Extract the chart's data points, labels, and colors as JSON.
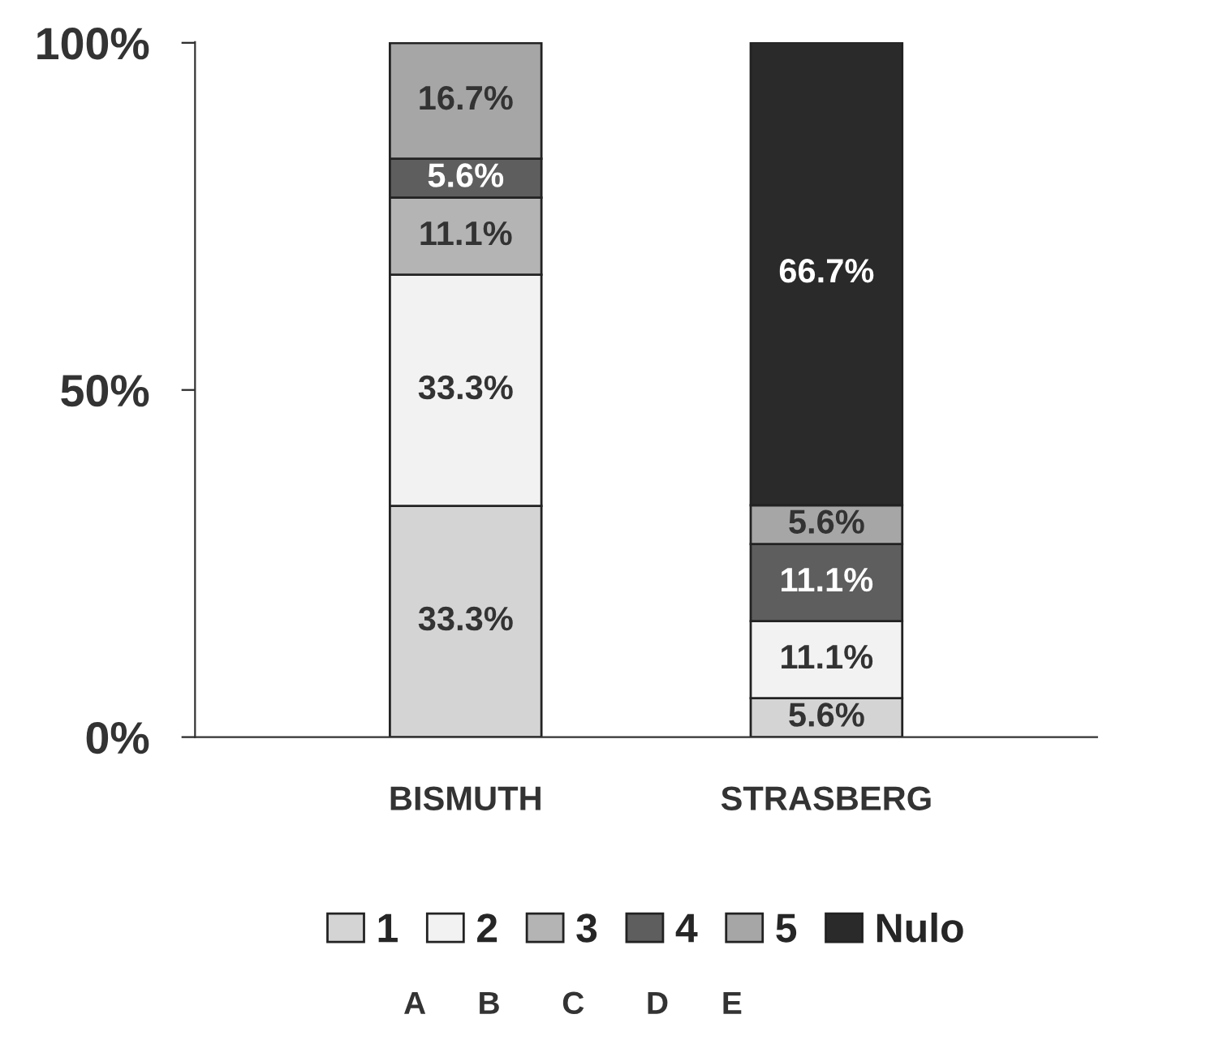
{
  "chart_data": {
    "type": "bar",
    "stacked": true,
    "categories": [
      "BISMUTH",
      "STRASBERG"
    ],
    "series": [
      {
        "name": "1",
        "color": "#d4d4d4",
        "values": [
          33.3,
          5.6
        ],
        "value_labels": [
          "33.3%",
          "5.6%"
        ]
      },
      {
        "name": "2",
        "color": "#f2f2f2",
        "values": [
          33.3,
          11.1
        ],
        "value_labels": [
          "33.3%",
          "11.1%"
        ]
      },
      {
        "name": "3",
        "color": "#b4b4b4",
        "values": [
          11.1,
          0
        ],
        "value_labels": [
          "11.1%",
          null
        ]
      },
      {
        "name": "4",
        "color": "#5e5e5e",
        "values": [
          5.6,
          11.1
        ],
        "value_labels": [
          "5.6%",
          "11.1%"
        ]
      },
      {
        "name": "5",
        "color": "#a6a6a6",
        "values": [
          16.7,
          5.6
        ],
        "value_labels": [
          "16.7%",
          "5.6%"
        ]
      },
      {
        "name": "Nulo",
        "color": "#2a2a2a",
        "values": [
          0,
          66.7
        ],
        "value_labels": [
          null,
          "66.7%"
        ]
      }
    ],
    "ylim": [
      0,
      100.1
    ],
    "yticks": [
      {
        "value": 0,
        "label": "0%"
      },
      {
        "value": 50,
        "label": "50%"
      },
      {
        "value": 100,
        "label": "100%"
      }
    ],
    "grid": false,
    "legend": "bottom",
    "annotations": [
      "A      B       C       D      E"
    ]
  }
}
